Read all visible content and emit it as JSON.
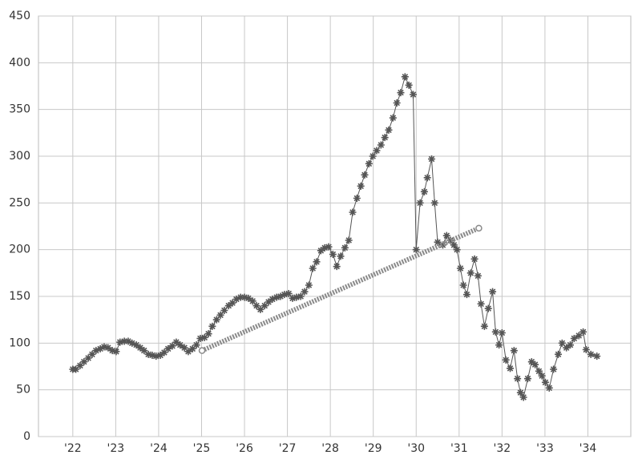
{
  "chart_data": {
    "type": "line",
    "xlim": [
      1921.2,
      1935.0
    ],
    "xticks": [
      {
        "value": 1922,
        "label": "'22"
      },
      {
        "value": 1923,
        "label": "'23"
      },
      {
        "value": 1924,
        "label": "'24"
      },
      {
        "value": 1925,
        "label": "'25"
      },
      {
        "value": 1926,
        "label": "'26"
      },
      {
        "value": 1927,
        "label": "'27"
      },
      {
        "value": 1928,
        "label": "'28"
      },
      {
        "value": 1929,
        "label": "'29"
      },
      {
        "value": 1930,
        "label": "'30"
      },
      {
        "value": 1931,
        "label": "'31"
      },
      {
        "value": 1932,
        "label": "'32"
      },
      {
        "value": 1933,
        "label": "'33"
      },
      {
        "value": 1934,
        "label": "'34"
      }
    ],
    "ylim": [
      0,
      450
    ],
    "yticks": [
      0,
      50,
      100,
      150,
      200,
      250,
      300,
      350,
      400,
      450
    ],
    "grid": true,
    "series": [
      {
        "color": "#555555",
        "marker": "asterisk",
        "x": [
          1922.0,
          1922.07,
          1922.17,
          1922.26,
          1922.36,
          1922.45,
          1922.54,
          1922.64,
          1922.73,
          1922.82,
          1922.92,
          1923.01,
          1923.1,
          1923.2,
          1923.29,
          1923.38,
          1923.48,
          1923.57,
          1923.66,
          1923.76,
          1923.85,
          1923.94,
          1924.04,
          1924.13,
          1924.22,
          1924.32,
          1924.41,
          1924.5,
          1924.6,
          1924.69,
          1924.79,
          1924.88,
          1924.97,
          1925.07,
          1925.16,
          1925.25,
          1925.35,
          1925.44,
          1925.53,
          1925.63,
          1925.72,
          1925.81,
          1925.91,
          1926.0,
          1926.09,
          1926.19,
          1926.28,
          1926.37,
          1926.47,
          1926.56,
          1926.65,
          1926.75,
          1926.84,
          1926.93,
          1927.03,
          1927.12,
          1927.21,
          1927.31,
          1927.4,
          1927.5,
          1927.59,
          1927.68,
          1927.78,
          1927.87,
          1927.96,
          1928.06,
          1928.15,
          1928.24,
          1928.34,
          1928.43,
          1928.52,
          1928.62,
          1928.71,
          1928.8,
          1928.9,
          1928.99,
          1929.08,
          1929.18,
          1929.27,
          1929.36,
          1929.46,
          1929.55,
          1929.64,
          1929.74,
          1929.83,
          1929.93,
          1930.0,
          1930.09,
          1930.19,
          1930.26,
          1930.36,
          1930.43,
          1930.5,
          1930.62,
          1930.71,
          1930.8,
          1930.88,
          1930.95,
          1931.03,
          1931.1,
          1931.18,
          1931.27,
          1931.36,
          1931.44,
          1931.51,
          1931.59,
          1931.68,
          1931.78,
          1931.85,
          1931.93,
          1932.0,
          1932.09,
          1932.19,
          1932.28,
          1932.36,
          1932.43,
          1932.5,
          1932.6,
          1932.69,
          1932.77,
          1932.86,
          1932.93,
          1933.01,
          1933.1,
          1933.2,
          1933.31,
          1933.4,
          1933.5,
          1933.59,
          1933.68,
          1933.79,
          1933.89,
          1933.96,
          1934.07,
          1934.21
        ],
        "values": [
          72,
          72,
          76,
          80,
          84,
          88,
          92,
          94,
          96,
          95,
          92,
          91,
          101,
          102,
          102,
          100,
          98,
          95,
          92,
          88,
          87,
          86,
          87,
          90,
          94,
          97,
          101,
          98,
          95,
          91,
          94,
          98,
          105,
          106,
          110,
          118,
          125,
          130,
          135,
          140,
          143,
          147,
          149,
          149,
          148,
          145,
          140,
          136,
          140,
          144,
          147,
          149,
          150,
          152,
          153,
          148,
          149,
          150,
          155,
          162,
          180,
          187,
          199,
          202,
          203,
          195,
          182,
          193,
          202,
          210,
          240,
          255,
          268,
          280,
          292,
          300,
          306,
          312,
          320,
          328,
          341,
          357,
          368,
          385,
          376,
          366,
          200,
          250,
          262,
          277,
          297,
          250,
          208,
          205,
          215,
          210,
          205,
          200,
          180,
          162,
          152,
          175,
          190,
          172,
          142,
          118,
          137,
          155,
          112,
          98,
          111,
          82,
          73,
          92,
          62,
          47,
          42,
          62,
          80,
          77,
          70,
          65,
          58,
          52,
          72,
          88,
          100,
          95,
          98,
          105,
          108,
          112,
          93,
          88,
          86
        ]
      },
      {
        "color": "#8a8a8a",
        "marker": "circle",
        "x": [
          1925.01,
          1931.46
        ],
        "values": [
          92,
          223
        ]
      }
    ]
  }
}
